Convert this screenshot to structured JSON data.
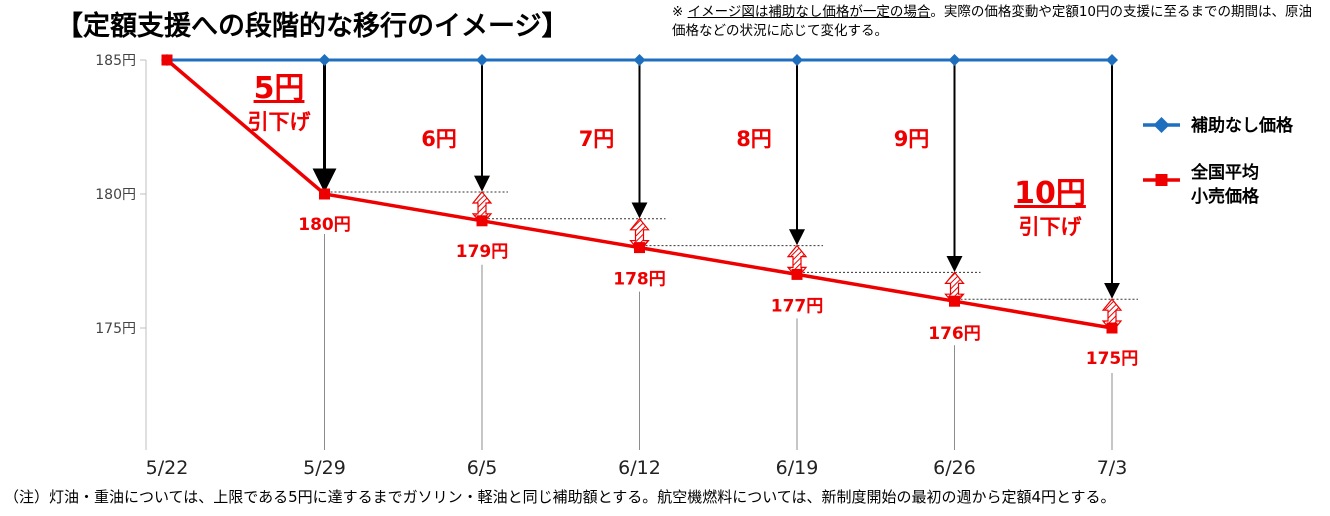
{
  "title": "【定額支援への段階的な移行のイメージ】",
  "note": {
    "mark": "※",
    "underlined": "イメージ図は補助なし価格が一定の場合",
    "rest": "。実際の価格変動や定額10円の支援に至るまでの期間は、原油価格などの状況に応じて変化する。"
  },
  "footnote": "（注）灯油・重油については、上限である5円に達するまでガソリン・軽油と同じ補助額とする。航空機燃料については、新制度開始の最初の週から定額4円とする。",
  "colors": {
    "no_subsidy": "#1f6fbf",
    "retail": "#ee0000",
    "arrow": "#000000"
  },
  "chart_data": {
    "type": "line",
    "categories": [
      "5/22",
      "5/29",
      "6/5",
      "6/12",
      "6/19",
      "6/26",
      "7/3"
    ],
    "y_tick_labels": [
      "185円",
      "180円",
      "175円"
    ],
    "y_ticks": [
      185,
      180,
      175
    ],
    "ylim": [
      170.5,
      185
    ],
    "series": [
      {
        "name": "補助なし価格",
        "values": [
          185,
          185,
          185,
          185,
          185,
          185,
          185
        ],
        "marker": "diamond",
        "color": "#1f6fbf"
      },
      {
        "name": "全国平均小売価格",
        "legend_lines": [
          "全国平均",
          "小売価格"
        ],
        "values": [
          185,
          180,
          179,
          178,
          177,
          176,
          175
        ],
        "marker": "square",
        "color": "#ee0000"
      }
    ],
    "value_labels": [
      "",
      "180円",
      "179円",
      "178円",
      "177円",
      "176円",
      "175円"
    ],
    "step_labels": [
      "",
      "",
      "6円",
      "7円",
      "8円",
      "9円",
      ""
    ],
    "callout_first": {
      "amount": "5円",
      "text": "引下げ"
    },
    "callout_last": {
      "amount": "10円",
      "text": "引下げ"
    }
  }
}
